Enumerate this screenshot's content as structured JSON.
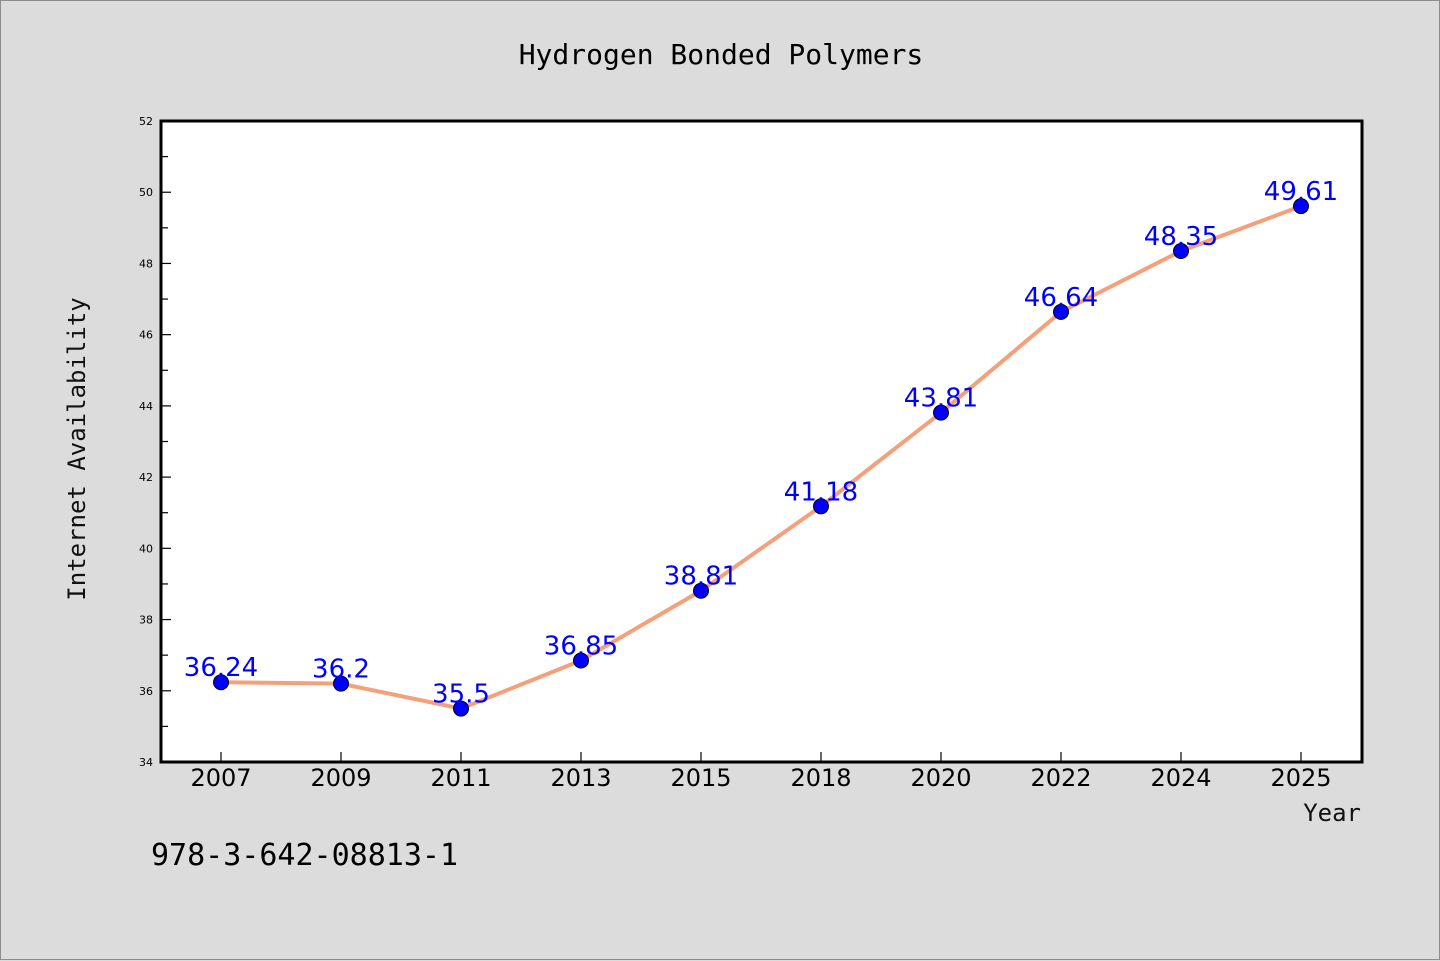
{
  "chart_data": {
    "type": "line",
    "title": "Hydrogen Bonded Polymers",
    "xlabel": "Year",
    "ylabel": "Internet Availability",
    "categories": [
      "2007",
      "2009",
      "2011",
      "2013",
      "2015",
      "2018",
      "2020",
      "2022",
      "2024",
      "2025"
    ],
    "values": [
      36.24,
      36.2,
      35.5,
      36.85,
      38.81,
      41.18,
      43.81,
      46.64,
      48.35,
      49.61
    ],
    "data_labels": [
      "36.24",
      "36.2",
      "35.5",
      "36.85",
      "38.81",
      "41.18",
      "43.81",
      "46.64",
      "48.35",
      "49.61"
    ],
    "ylim": [
      34,
      52
    ],
    "yticks": [
      "34",
      "36",
      "38",
      "40",
      "42",
      "44",
      "46",
      "48",
      "50",
      "52"
    ],
    "grid": false,
    "legend": "none",
    "line_color": "#f4a07a",
    "marker_color": "#0000ff",
    "label_color": "#0000ff"
  },
  "footnote": "978-3-642-08813-1"
}
